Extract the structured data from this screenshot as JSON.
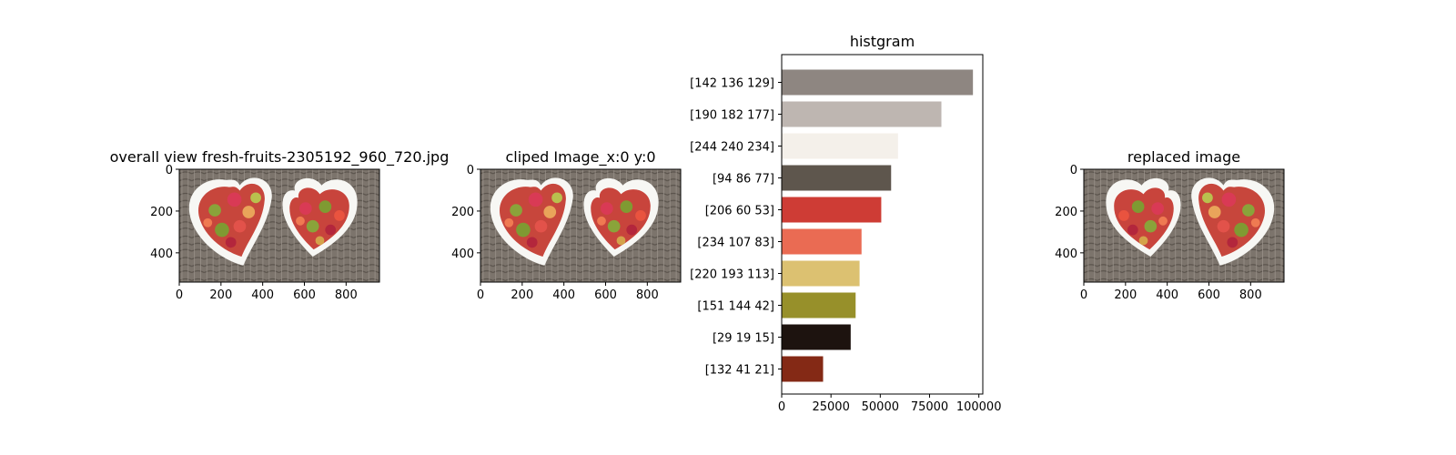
{
  "chart_data": [
    {
      "type": "image",
      "title": "overall view fresh-fruits-2305192_960_720.jpg",
      "xticks": [
        0,
        200,
        400,
        600,
        800
      ],
      "yticks": [
        0,
        200,
        400
      ],
      "xlim": [
        0,
        960
      ],
      "ylim": [
        540,
        0
      ]
    },
    {
      "type": "image",
      "title": "cliped Image_x:0 y:0",
      "xticks": [
        0,
        200,
        400,
        600,
        800
      ],
      "yticks": [
        0,
        200,
        400
      ],
      "xlim": [
        0,
        960
      ],
      "ylim": [
        540,
        0
      ]
    },
    {
      "type": "bar",
      "orientation": "horizontal",
      "title": "histgram",
      "categories": [
        "[142 136 129]",
        "[190 182 177]",
        "[244 240 234]",
        "[94 86 77]",
        "[206  60  53]",
        "[234 107  83]",
        "[220 193 113]",
        "[151 144  42]",
        "[29 19 15]",
        "[132  41  21]"
      ],
      "values": [
        97000,
        81000,
        59000,
        55500,
        50500,
        40500,
        39500,
        37500,
        35000,
        21000
      ],
      "colors": [
        "#8e8681",
        "#beb6b1",
        "#f4f0ea",
        "#5e564d",
        "#ce3c35",
        "#ea6b53",
        "#dcc171",
        "#97902a",
        "#1d130f",
        "#842915"
      ],
      "xticks": [
        0,
        25000,
        50000,
        75000,
        100000
      ],
      "xlim": [
        0,
        102000
      ]
    },
    {
      "type": "image",
      "title": "replaced image",
      "xticks": [
        0,
        200,
        400,
        600,
        800
      ],
      "yticks": [
        0,
        200,
        400
      ],
      "xlim": [
        0,
        960
      ],
      "ylim": [
        540,
        0
      ]
    }
  ]
}
